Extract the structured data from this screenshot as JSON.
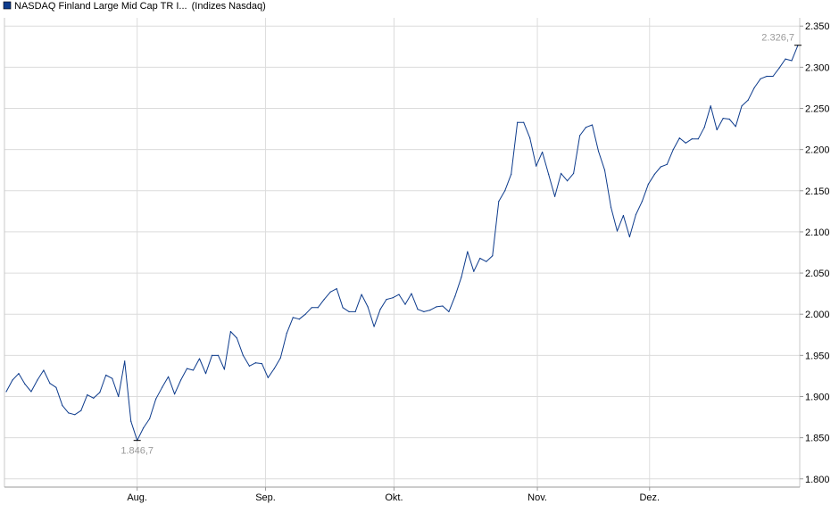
{
  "legend": {
    "label": "NASDAQ Finland Large Mid Cap TR I...",
    "source": "(Indizes Nasdaq)",
    "swatch_color": "#0d3b8c"
  },
  "chart_data": {
    "type": "line",
    "title": "",
    "xlabel": "",
    "ylabel": "",
    "ylim": [
      1800,
      2350
    ],
    "yticks": [
      1800,
      1850,
      1900,
      1950,
      2000,
      2050,
      2100,
      2150,
      2200,
      2250,
      2300,
      2350
    ],
    "ytick_labels": [
      "1.800",
      "1.850",
      "1.900",
      "1.950",
      "2.000",
      "2.050",
      "2.100",
      "2.150",
      "2.200",
      "2.250",
      "2.300",
      "2.350"
    ],
    "xticks": [
      {
        "label": "Aug.",
        "index": 21.0
      },
      {
        "label": "Sep.",
        "index": 41.6
      },
      {
        "label": "Okt.",
        "index": 62.2
      },
      {
        "label": "Nov.",
        "index": 85.2
      },
      {
        "label": "Dez.",
        "index": 103.2
      }
    ],
    "grid": true,
    "line_color": "#0d3b8c",
    "annotations": [
      {
        "label": "1.846,7",
        "index": 21,
        "value": 1846.7,
        "kind": "min"
      },
      {
        "label": "2.326,7",
        "index": 127,
        "value": 2326.7,
        "kind": "max"
      }
    ],
    "series": [
      {
        "values": [
          1906,
          1920,
          1928,
          1915,
          1906,
          1920,
          1932,
          1916,
          1911,
          1889,
          1880,
          1878,
          1883,
          1902,
          1898,
          1905,
          1926,
          1922,
          1900,
          1943,
          1870,
          1846.7,
          1862,
          1873,
          1897,
          1911,
          1924,
          1903,
          1920,
          1934,
          1932,
          1946,
          1928,
          1950,
          1950,
          1933,
          1979,
          1971,
          1950,
          1937,
          1941,
          1940,
          1923,
          1934,
          1947,
          1977,
          1996,
          1994,
          2000,
          2008,
          2008,
          2018,
          2027,
          2031,
          2008,
          2003,
          2003,
          2024,
          2009,
          1985,
          2006,
          2018,
          2020,
          2024,
          2012,
          2025,
          2006,
          2003,
          2005,
          2009,
          2010,
          2003,
          2022,
          2045,
          2076,
          2052,
          2068,
          2064,
          2071,
          2137,
          2150,
          2170,
          2233,
          2233,
          2214,
          2180,
          2197,
          2170,
          2143,
          2171,
          2162,
          2171,
          2217,
          2227,
          2230,
          2198,
          2175,
          2130,
          2101,
          2120,
          2094,
          2121,
          2137,
          2158,
          2170,
          2179,
          2182,
          2200,
          2214,
          2208,
          2213,
          2213,
          2227,
          2253,
          2224,
          2238,
          2237,
          2228,
          2253,
          2260,
          2275,
          2286,
          2289,
          2289,
          2299,
          2310,
          2308,
          2326.7
        ]
      }
    ]
  }
}
